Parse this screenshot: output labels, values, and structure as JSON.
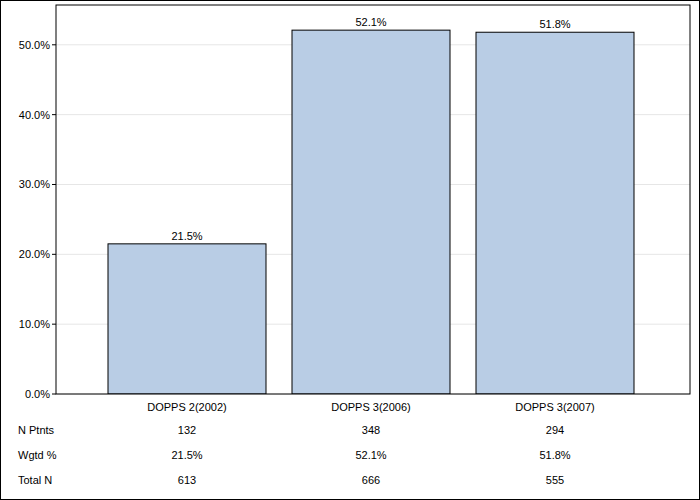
{
  "chart_data": {
    "type": "bar",
    "categories": [
      "DOPPS 2(2002)",
      "DOPPS 3(2006)",
      "DOPPS 3(2007)"
    ],
    "values": [
      21.5,
      52.1,
      51.8
    ],
    "value_labels": [
      "21.5%",
      "52.1%",
      "51.8%"
    ],
    "data_labels": true,
    "color": "#b9cde5",
    "ylim": [
      0,
      55.7
    ],
    "yticks": [
      {
        "value": 0,
        "label": "0.0%"
      },
      {
        "value": 10,
        "label": "10.0%"
      },
      {
        "value": 20,
        "label": "20.0%"
      },
      {
        "value": 30,
        "label": "30.0%"
      },
      {
        "value": 40,
        "label": "40.0%"
      },
      {
        "value": 50,
        "label": "50.0%"
      }
    ],
    "grid": true
  },
  "table": {
    "rows": [
      {
        "label": "N Ptnts",
        "cells": [
          "132",
          "348",
          "294"
        ]
      },
      {
        "label": "Wgtd %",
        "cells": [
          "21.5%",
          "52.1%",
          "51.8%"
        ]
      },
      {
        "label": "Total N",
        "cells": [
          "613",
          "666",
          "555"
        ]
      }
    ]
  }
}
